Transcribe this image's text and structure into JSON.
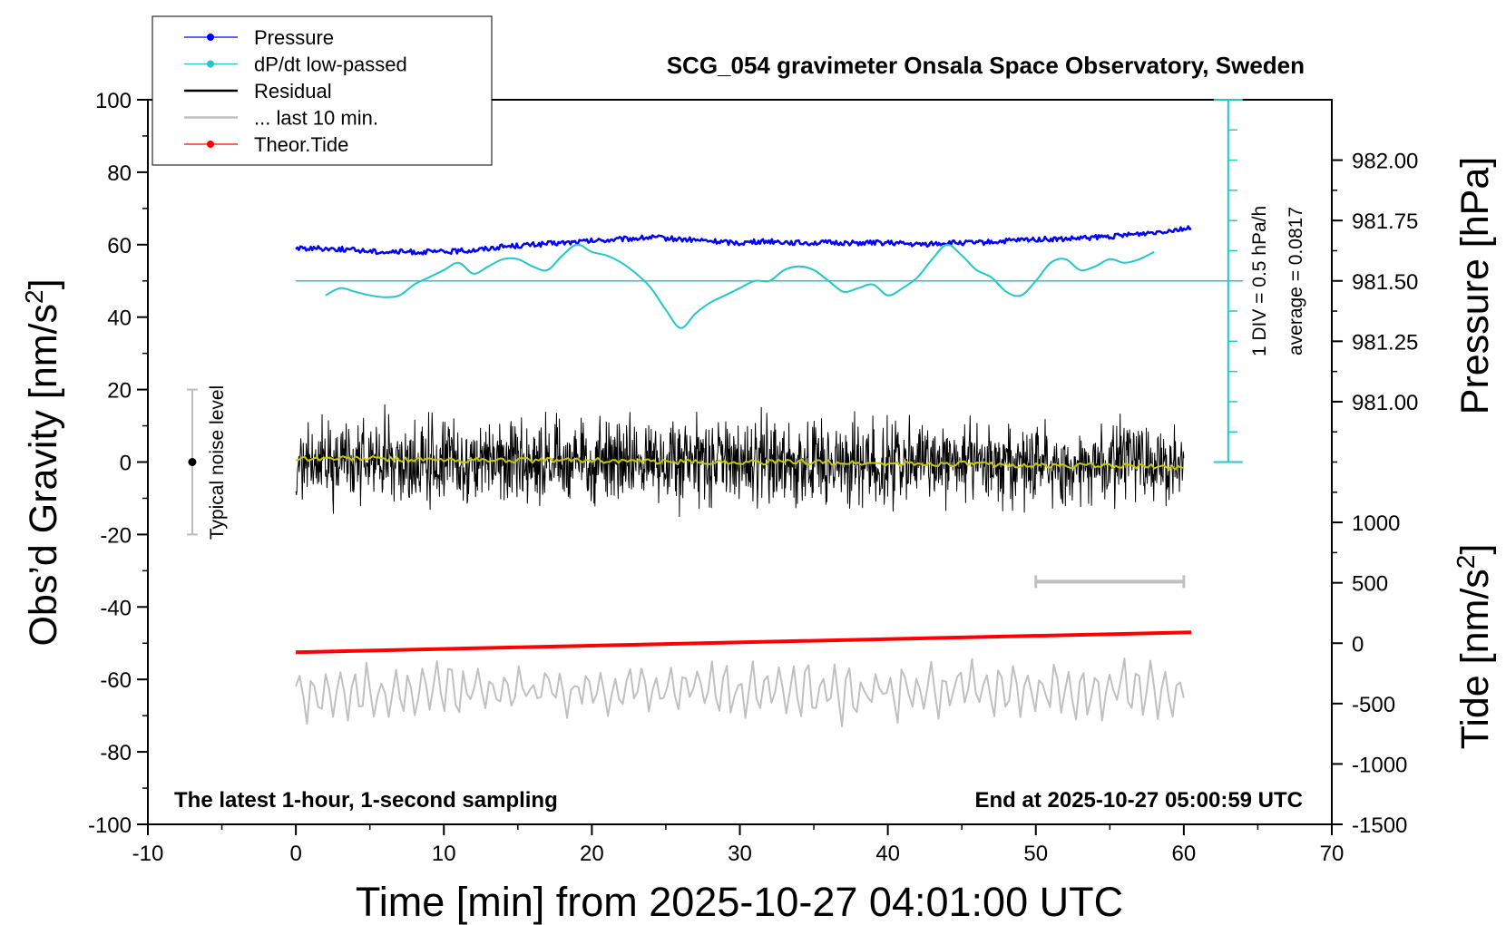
{
  "chart_data": {
    "type": "line",
    "title": "SCG_054 gravimeter Onsala Space Observatory, Sweden",
    "xlabel": "Time [min] from 2025-10-27 04:01:00 UTC",
    "ylabel_left_main": "Obs’d Gravity [nm/s",
    "ylabel_left_sup": "2",
    "ylabel_left_end": "]",
    "ylabel_right_pressure": "Pressure [hPa]",
    "ylabel_right_tide_main": "Tide [nm/s",
    "ylabel_right_tide_sup": "2",
    "ylabel_right_tide_end": "]",
    "xlim": [
      -10,
      70
    ],
    "ylim": [
      -100,
      100
    ],
    "x_ticks": [
      "-10",
      "0",
      "10",
      "20",
      "30",
      "40",
      "50",
      "60",
      "70"
    ],
    "y_ticks": [
      "-100",
      "-80",
      "-60",
      "-40",
      "-20",
      "0",
      "20",
      "40",
      "60",
      "80",
      "100"
    ],
    "pressure_axis": {
      "ticks": [
        "981.00",
        "981.25",
        "981.50",
        "981.75",
        "982.00"
      ],
      "values": [
        981.0,
        981.25,
        981.5,
        981.75,
        982.0
      ]
    },
    "tide_axis": {
      "ticks": [
        "-1500",
        "-1000",
        "-500",
        "0",
        "500",
        "1000"
      ],
      "values": [
        -1500,
        -1000,
        -500,
        0,
        500,
        1000
      ]
    },
    "legend": {
      "placement": "top-left",
      "items": [
        {
          "label": "Pressure",
          "color": "#0000ff",
          "marker": true
        },
        {
          "label": "dP/dt low-passed",
          "color": "#20c8c8",
          "marker": true
        },
        {
          "label": "Residual",
          "color": "#000000",
          "marker": false
        },
        {
          "label": "... last 10 min.",
          "color": "#c0c0c0",
          "marker": false
        },
        {
          "label": "Theor.Tide",
          "color": "#ff0000",
          "marker": true
        }
      ]
    },
    "annotations": {
      "bottom_left": "The latest 1-hour, 1-second sampling",
      "bottom_right": "End at 2025-10-27 05:00:59 UTC",
      "noise_label": "Typical noise level",
      "div_label": "1 DIV = 0.5 hPa/h",
      "average_label": "average = 0.0817"
    },
    "noise_bar": {
      "x": -7,
      "center": 0,
      "half_range": 20
    },
    "scale_bar": {
      "x_start": 50,
      "x_end": 60,
      "y": -33
    },
    "dpdt_scale": {
      "x": 63,
      "y_bottom": 0,
      "y_top": 100,
      "zero_y": 50
    },
    "series": [
      {
        "name": "Pressure",
        "color": "#0000ff",
        "x": [
          0,
          2,
          4,
          6,
          8,
          10,
          12,
          14,
          16,
          18,
          20,
          22,
          24,
          26,
          28,
          30,
          32,
          34,
          36,
          38,
          40,
          42,
          44,
          46,
          48,
          50,
          52,
          54,
          56,
          58,
          60
        ],
        "y": [
          59,
          59,
          58.5,
          58,
          58,
          58,
          58.5,
          59.5,
          60,
          60.5,
          61,
          61.5,
          62,
          61.5,
          61,
          60.5,
          61,
          60.5,
          60.5,
          60.5,
          60.5,
          60,
          60.5,
          60.5,
          61,
          61.5,
          61.5,
          62,
          62.5,
          63.5,
          64.5
        ]
      },
      {
        "name": "dP/dt low-passed",
        "color": "#20c8c8",
        "x": [
          2,
          3,
          4,
          5,
          6,
          7,
          8,
          9,
          10,
          11,
          12,
          13,
          14,
          15,
          16,
          17,
          18,
          19,
          20,
          21,
          22,
          23,
          24,
          25,
          26,
          27,
          28,
          29,
          30,
          31,
          32,
          33,
          34,
          35,
          36,
          37,
          38,
          39,
          40,
          41,
          42,
          43,
          44,
          45,
          46,
          47,
          48,
          49,
          50,
          51,
          52,
          53,
          54,
          55,
          56,
          57,
          58
        ],
        "y": [
          46,
          48,
          47,
          46,
          45.5,
          46,
          49,
          51,
          53,
          55,
          52,
          54,
          56,
          56,
          54,
          53,
          57,
          60,
          58,
          57,
          55,
          52,
          48,
          42,
          37,
          41,
          44,
          46,
          48,
          50,
          50,
          53,
          54,
          53,
          50,
          47,
          48,
          49,
          46,
          48,
          51,
          56,
          60,
          57,
          53,
          51,
          47,
          46,
          50,
          55,
          56,
          53,
          54,
          56,
          55,
          56,
          58
        ]
      },
      {
        "name": "Residual",
        "color": "#000000",
        "x_start": 0,
        "x_end": 60,
        "amplitude": 10,
        "points": 1800
      },
      {
        "name": "Residual smoothed",
        "color": "#c8c800",
        "x": [
          0,
          5,
          10,
          15,
          20,
          25,
          30,
          35,
          40,
          45,
          50,
          55,
          60
        ],
        "y": [
          1,
          1,
          0.5,
          0.5,
          0.5,
          0,
          0,
          0,
          -0.5,
          -0.5,
          -1,
          -1,
          -1.5
        ]
      },
      {
        "name": "Theor.Tide",
        "color": "#ff0000",
        "x": [
          0,
          60.5
        ],
        "y": [
          -52.5,
          -47
        ]
      },
      {
        "name": "... last 10 min.",
        "color": "#c0c0c0",
        "x_start": 0,
        "x_end": 60,
        "center": -63,
        "amplitude": 9,
        "points": 240
      }
    ]
  }
}
